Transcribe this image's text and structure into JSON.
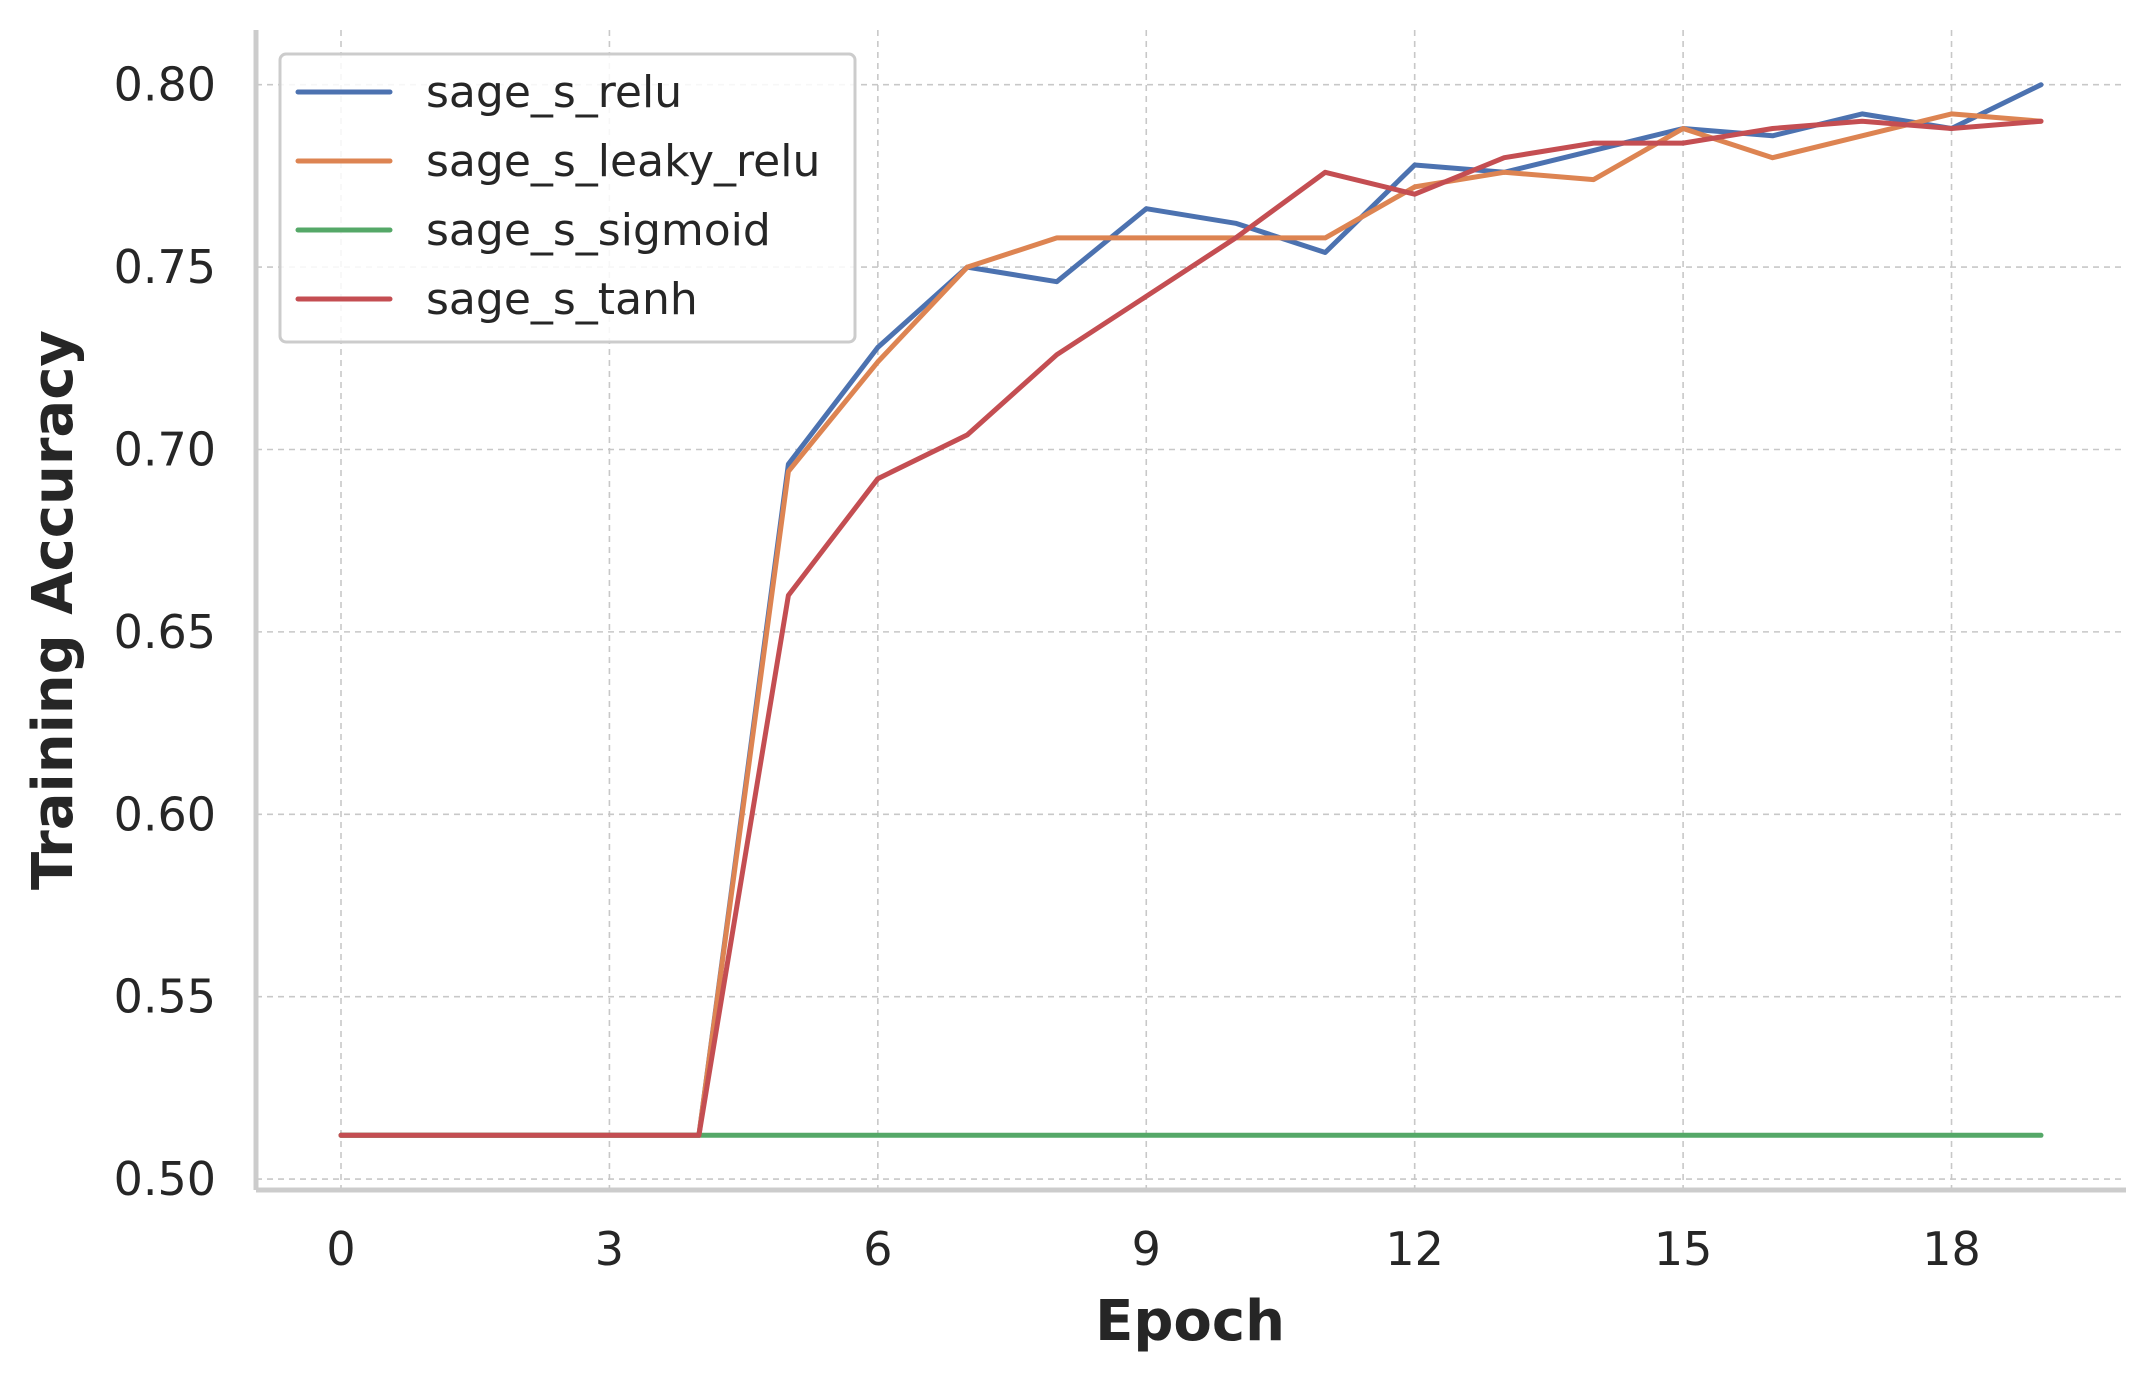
{
  "chart_data": {
    "type": "line",
    "title": "",
    "xlabel": "Epoch",
    "ylabel": "Training Accuracy",
    "x": [
      0,
      1,
      2,
      3,
      4,
      5,
      6,
      7,
      8,
      9,
      10,
      11,
      12,
      13,
      14,
      15,
      16,
      17,
      18,
      19
    ],
    "xlim": [
      -0.95,
      19.95
    ],
    "ylim": [
      0.497,
      0.815
    ],
    "xticks": [
      0,
      3,
      6,
      9,
      12,
      15,
      18
    ],
    "xtick_labels": [
      "0",
      "3",
      "6",
      "9",
      "12",
      "15",
      "18"
    ],
    "yticks": [
      0.5,
      0.55,
      0.6,
      0.65,
      0.7,
      0.75,
      0.8
    ],
    "ytick_labels": [
      "0.50",
      "0.55",
      "0.60",
      "0.65",
      "0.70",
      "0.75",
      "0.80"
    ],
    "grid": true,
    "legend_position": "top-left",
    "series": [
      {
        "name": "sage_s_relu",
        "color": "#4c72b0",
        "values": [
          0.512,
          0.512,
          0.512,
          0.512,
          0.512,
          0.696,
          0.728,
          0.75,
          0.746,
          0.766,
          0.762,
          0.754,
          0.778,
          0.776,
          0.782,
          0.788,
          0.786,
          0.792,
          0.788,
          0.8
        ]
      },
      {
        "name": "sage_s_leaky_relu",
        "color": "#dd8452",
        "values": [
          0.512,
          0.512,
          0.512,
          0.512,
          0.512,
          0.694,
          0.724,
          0.75,
          0.758,
          0.758,
          0.758,
          0.758,
          0.772,
          0.776,
          0.774,
          0.788,
          0.78,
          0.786,
          0.792,
          0.79
        ]
      },
      {
        "name": "sage_s_sigmoid",
        "color": "#55a868",
        "values": [
          0.512,
          0.512,
          0.512,
          0.512,
          0.512,
          0.512,
          0.512,
          0.512,
          0.512,
          0.512,
          0.512,
          0.512,
          0.512,
          0.512,
          0.512,
          0.512,
          0.512,
          0.512,
          0.512,
          0.512
        ]
      },
      {
        "name": "sage_s_tanh",
        "color": "#c44e52",
        "values": [
          0.512,
          0.512,
          0.512,
          0.512,
          0.512,
          0.66,
          0.692,
          0.704,
          0.726,
          0.742,
          0.758,
          0.776,
          0.77,
          0.78,
          0.784,
          0.784,
          0.788,
          0.79,
          0.788,
          0.79
        ]
      }
    ]
  }
}
